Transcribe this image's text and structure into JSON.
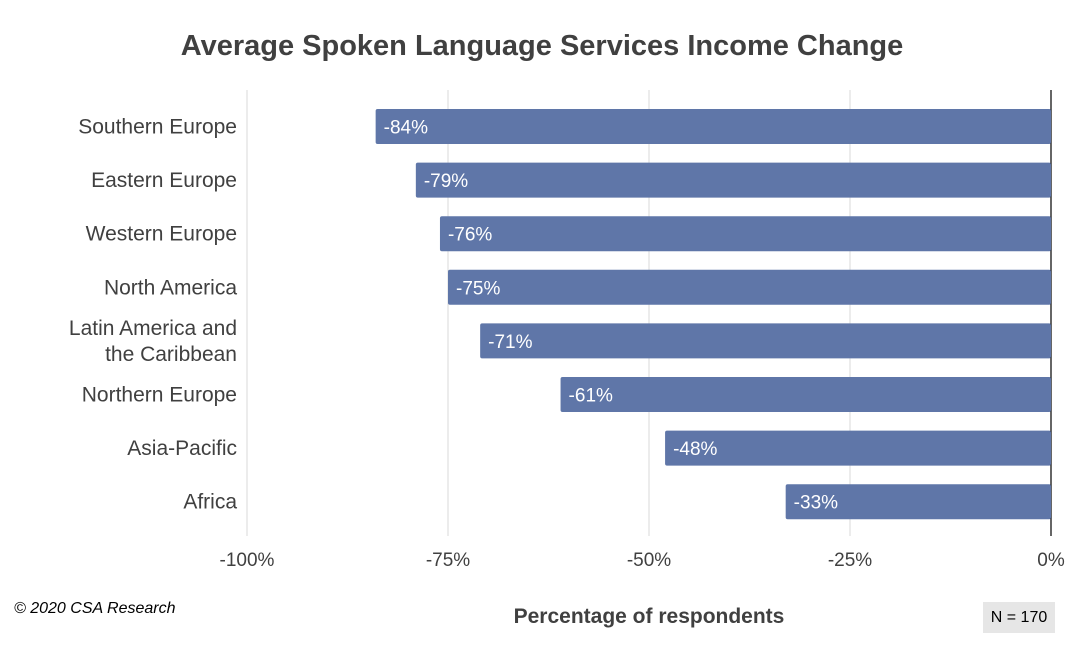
{
  "chart_data": {
    "type": "bar",
    "orientation": "horizontal",
    "title": "Average Spoken Language Services Income Change",
    "xlabel": "Percentage of respondents",
    "categories": [
      [
        "Southern Europe"
      ],
      [
        "Eastern Europe"
      ],
      [
        "Western Europe"
      ],
      [
        "North America"
      ],
      [
        "Latin America and",
        "the Caribbean"
      ],
      [
        "Northern Europe"
      ],
      [
        "Asia-Pacific"
      ],
      [
        "Africa"
      ]
    ],
    "values": [
      -84,
      -79,
      -76,
      -75,
      -71,
      -61,
      -48,
      -33
    ],
    "data_labels": [
      "-84%",
      "-79%",
      "-76%",
      "-75%",
      "-71%",
      "-61%",
      "-48%",
      "-33%"
    ],
    "xlim": [
      -100,
      0
    ],
    "xticks": [
      -100,
      -75,
      -50,
      -25,
      0
    ],
    "xtick_labels": [
      "-100%",
      "-75%",
      "-50%",
      "-25%",
      "0%"
    ],
    "grid": "vertical",
    "bar_color": "#5f76a8"
  },
  "footer": {
    "copyright": "© 2020 CSA Research",
    "sample_size": "N = 170"
  }
}
